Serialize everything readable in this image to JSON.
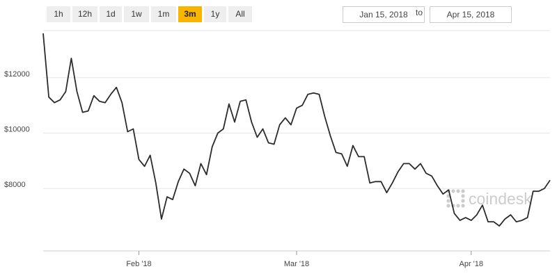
{
  "range_buttons": [
    {
      "label": "1h",
      "active": false
    },
    {
      "label": "12h",
      "active": false
    },
    {
      "label": "1d",
      "active": false
    },
    {
      "label": "1w",
      "active": false
    },
    {
      "label": "1m",
      "active": false
    },
    {
      "label": "3m",
      "active": true
    },
    {
      "label": "1y",
      "active": false
    },
    {
      "label": "All",
      "active": false
    }
  ],
  "date_range": {
    "from": "Jan 15, 2018",
    "separator": "to",
    "to": "Apr 15, 2018"
  },
  "watermark": {
    "text": "coindesk",
    "icon": "coindesk-logo-icon",
    "color": "#cccccc"
  },
  "colors": {
    "active_button": "#f7b500",
    "line": "#2b2b2b",
    "grid": "#e6e6e6"
  },
  "chart_data": {
    "type": "line",
    "title": "",
    "xlabel": "",
    "ylabel": "",
    "ylim": [
      6200,
      13700
    ],
    "y_ticks": [
      {
        "value": 8000,
        "label": "$8000"
      },
      {
        "value": 10000,
        "label": "$10000"
      },
      {
        "value": 12000,
        "label": "$12000"
      }
    ],
    "x_ticks": [
      {
        "value": "2018-02-01",
        "label": "Feb '18"
      },
      {
        "value": "2018-03-01",
        "label": "Mar '18"
      },
      {
        "value": "2018-04-01",
        "label": "Apr '18"
      }
    ],
    "x_start": "2018-01-15",
    "x_end": "2018-04-15",
    "grid": true,
    "series": [
      {
        "name": "",
        "x": [
          "2018-01-15",
          "2018-01-16",
          "2018-01-17",
          "2018-01-18",
          "2018-01-19",
          "2018-01-20",
          "2018-01-21",
          "2018-01-22",
          "2018-01-23",
          "2018-01-24",
          "2018-01-25",
          "2018-01-26",
          "2018-01-27",
          "2018-01-28",
          "2018-01-29",
          "2018-01-30",
          "2018-01-31",
          "2018-02-01",
          "2018-02-02",
          "2018-02-03",
          "2018-02-04",
          "2018-02-05",
          "2018-02-06",
          "2018-02-07",
          "2018-02-08",
          "2018-02-09",
          "2018-02-10",
          "2018-02-11",
          "2018-02-12",
          "2018-02-13",
          "2018-02-14",
          "2018-02-15",
          "2018-02-16",
          "2018-02-17",
          "2018-02-18",
          "2018-02-19",
          "2018-02-20",
          "2018-02-21",
          "2018-02-22",
          "2018-02-23",
          "2018-02-24",
          "2018-02-25",
          "2018-02-26",
          "2018-02-27",
          "2018-02-28",
          "2018-03-01",
          "2018-03-02",
          "2018-03-03",
          "2018-03-04",
          "2018-03-05",
          "2018-03-06",
          "2018-03-07",
          "2018-03-08",
          "2018-03-09",
          "2018-03-10",
          "2018-03-11",
          "2018-03-12",
          "2018-03-13",
          "2018-03-14",
          "2018-03-15",
          "2018-03-16",
          "2018-03-17",
          "2018-03-18",
          "2018-03-19",
          "2018-03-20",
          "2018-03-21",
          "2018-03-22",
          "2018-03-23",
          "2018-03-24",
          "2018-03-25",
          "2018-03-26",
          "2018-03-27",
          "2018-03-28",
          "2018-03-29",
          "2018-03-30",
          "2018-03-31",
          "2018-04-01",
          "2018-04-02",
          "2018-04-03",
          "2018-04-04",
          "2018-04-05",
          "2018-04-06",
          "2018-04-07",
          "2018-04-08",
          "2018-04-09",
          "2018-04-10",
          "2018-04-11",
          "2018-04-12",
          "2018-04-13",
          "2018-04-14",
          "2018-04-15"
        ],
        "values": [
          13600,
          11300,
          11100,
          11200,
          11500,
          12700,
          11500,
          10750,
          10800,
          11350,
          11150,
          11100,
          11400,
          11650,
          11100,
          10050,
          10150,
          9050,
          8800,
          9200,
          8200,
          6900,
          7700,
          7600,
          8250,
          8700,
          8550,
          8100,
          8900,
          8500,
          9500,
          10000,
          10150,
          11050,
          10400,
          11150,
          11200,
          10400,
          9850,
          10150,
          9650,
          9600,
          10300,
          10550,
          10300,
          10900,
          11000,
          11400,
          11450,
          11400,
          10600,
          9900,
          9300,
          9250,
          8800,
          9550,
          9150,
          9150,
          8200,
          8250,
          8250,
          7850,
          8200,
          8600,
          8900,
          8900,
          8700,
          8900,
          8550,
          8450,
          8100,
          7800,
          7950,
          7100,
          6850,
          6950,
          6850,
          7050,
          7400,
          6800,
          6800,
          6650,
          6900,
          7050,
          6800,
          6850,
          6950,
          7900,
          7900,
          8000,
          8300
        ]
      }
    ]
  }
}
